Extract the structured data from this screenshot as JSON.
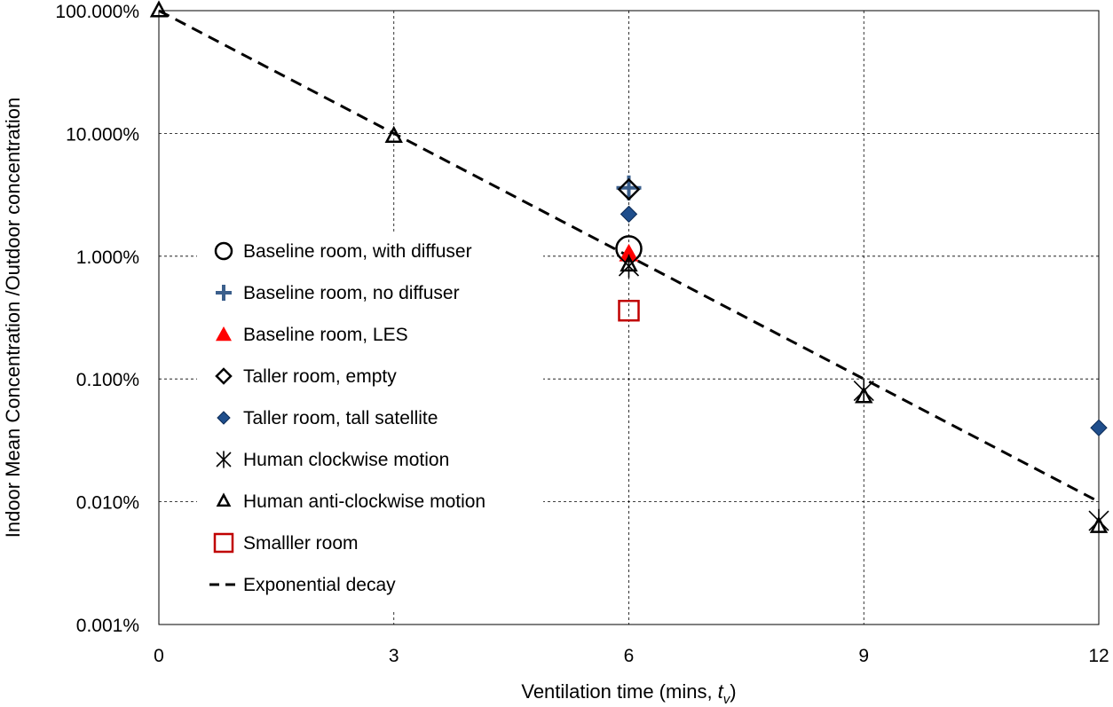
{
  "chart_data": {
    "type": "scatter",
    "title": "",
    "xlabel_main": "Ventilation time (mins, ",
    "xlabel_var": "t",
    "xlabel_sub": "v",
    "xlabel_close": ")",
    "ylabel": "Indoor  Mean Concentration /Outdoor concentration",
    "xlim": [
      0,
      12
    ],
    "ylim": [
      0.001,
      100
    ],
    "yscale": "log",
    "x_ticks": [
      0,
      3,
      6,
      9,
      12
    ],
    "x_tick_labels": [
      "0",
      "3",
      "6",
      "9",
      "12"
    ],
    "y_ticks": [
      100,
      10,
      1,
      0.1,
      0.01,
      0.001
    ],
    "y_tick_labels": [
      "100.000%",
      "10.000%",
      "1.000%",
      "0.100%",
      "0.010%",
      "0.001%"
    ],
    "grid": true,
    "legend_position": "center-left",
    "series": [
      {
        "name": "Baseline room,  with diffuser",
        "marker": "circle",
        "color": "#000000",
        "points": [
          [
            6,
            1.15
          ]
        ]
      },
      {
        "name": "Baseline room, no diffuser",
        "marker": "plus",
        "color": "#3b5f8c",
        "points": [
          [
            6,
            3.6
          ]
        ]
      },
      {
        "name": "Baseline room, LES",
        "marker": "triangle-filled",
        "color": "#ff0000",
        "points": [
          [
            6,
            1.05
          ]
        ]
      },
      {
        "name": "Taller room, empty",
        "marker": "diamond-open",
        "color": "#000000",
        "points": [
          [
            6,
            3.5
          ]
        ]
      },
      {
        "name": "Taller room, tall satellite",
        "marker": "diamond-filled",
        "color": "#1f4e8c",
        "points": [
          [
            6,
            2.2
          ],
          [
            12,
            0.04
          ]
        ]
      },
      {
        "name": "Human clockwise motion",
        "marker": "asterisk",
        "color": "#000000",
        "points": [
          [
            6,
            0.83
          ],
          [
            9,
            0.08
          ],
          [
            12,
            0.007
          ]
        ]
      },
      {
        "name": "Human anti-clockwise motion",
        "marker": "triangle-open",
        "color": "#000000",
        "points": [
          [
            0,
            100
          ],
          [
            3,
            9.5
          ],
          [
            6,
            0.85
          ],
          [
            9,
            0.072
          ],
          [
            12,
            0.0063
          ]
        ]
      },
      {
        "name": "Smalller room",
        "marker": "square-open",
        "color": "#c00000",
        "points": [
          [
            6,
            0.36
          ]
        ]
      },
      {
        "name": "Exponential decay",
        "marker": "dashed-line",
        "color": "#000000",
        "points": [
          [
            0,
            100
          ],
          [
            12,
            0.01
          ]
        ]
      }
    ]
  }
}
